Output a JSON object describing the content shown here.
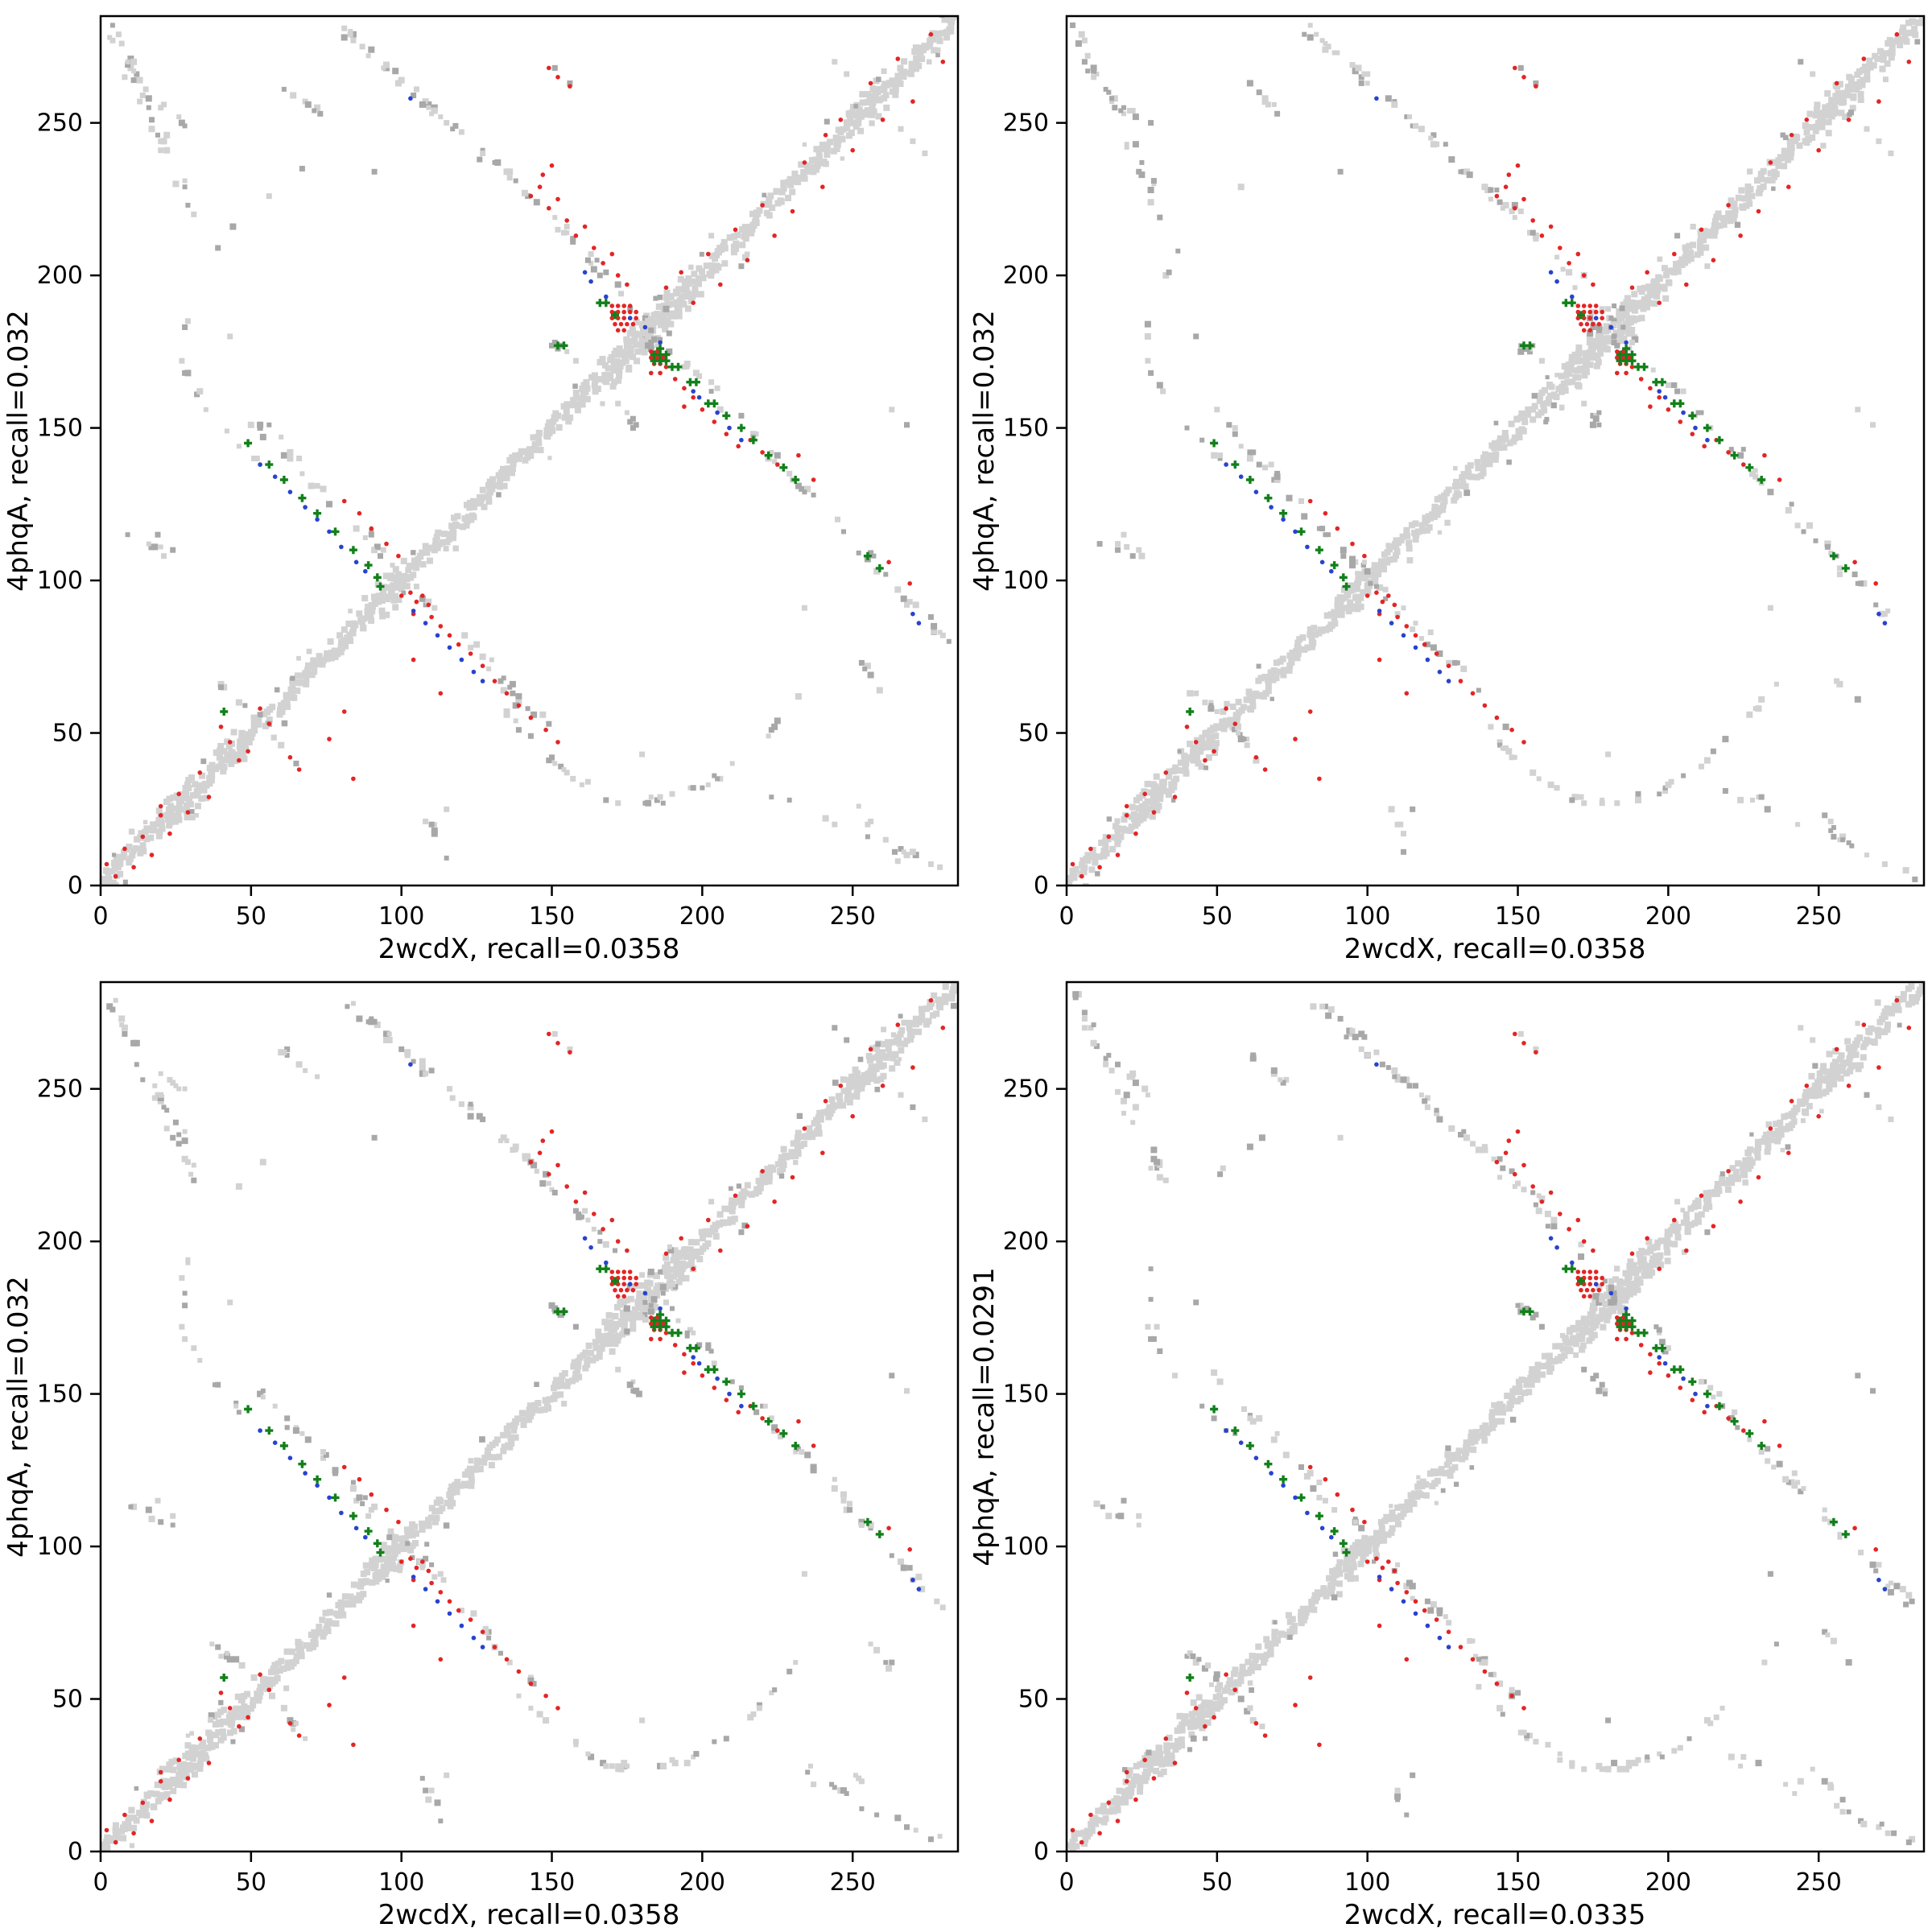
{
  "page": {
    "background": "#ffffff"
  },
  "chart_data": {
    "type": "scatter",
    "layout": {
      "rows": 2,
      "cols": 2,
      "panel_order": [
        "top-left",
        "top-right",
        "bottom-left",
        "bottom-right"
      ]
    },
    "axes": {
      "xlim": [
        0,
        285
      ],
      "ylim": [
        0,
        285
      ],
      "xticks": [
        0,
        50,
        100,
        150,
        200,
        250
      ],
      "yticks": [
        0,
        50,
        100,
        150,
        200,
        250
      ],
      "grid": false
    },
    "colors": {
      "gray_light": "#d2d2d2",
      "gray_dark": "#a8a8a8",
      "red": "#e32525",
      "blue": "#2743cf",
      "green": "#12801a",
      "axis": "#000000",
      "background": "#ffffff"
    },
    "panels": [
      {
        "id": "top-left",
        "xlabel": "2wcdX, recall=0.0358",
        "ylabel": "4phqA, recall=0.032",
        "seed": 101
      },
      {
        "id": "top-right",
        "xlabel": "2wcdX, recall=0.0358",
        "ylabel": "4phqA, recall=0.032",
        "seed": 202
      },
      {
        "id": "bottom-left",
        "xlabel": "2wcdX, recall=0.0358",
        "ylabel": "4phqA, recall=0.032",
        "seed": 303
      },
      {
        "id": "bottom-right",
        "xlabel": "2wcdX, recall=0.0335",
        "ylabel": "4phqA, recall=0.0291",
        "seed": 404
      }
    ],
    "pattern": {
      "band": {
        "step": 0.85,
        "halfwidth": 1.8,
        "size": 8
      },
      "band_bulges": [
        [
          22,
          33
        ],
        [
          41,
          49
        ],
        [
          91,
          101
        ],
        [
          167,
          197
        ],
        [
          250,
          263
        ]
      ],
      "bulge_halfwidth": 3.4,
      "fleck_count": 46,
      "segments": [
        [
          80,
          281,
          145,
          224,
          46,
          1.6,
          0,
          0
        ],
        [
          145,
          224,
          173,
          195,
          16,
          1.8,
          0,
          0
        ],
        [
          193,
          173,
          242,
          121,
          26,
          1.8,
          0,
          0
        ],
        [
          242,
          121,
          281,
          80,
          20,
          1.8,
          0,
          0
        ],
        [
          3,
          281,
          33,
          219,
          32,
          2.2,
          0.5,
          0
        ],
        [
          47,
          157,
          150,
          50,
          52,
          1.8,
          0,
          0
        ],
        [
          60,
          263,
          73,
          252,
          7,
          1.5,
          0.5,
          0
        ],
        [
          16,
          258,
          28,
          249,
          6,
          1.2,
          0.5,
          0
        ],
        [
          8,
          114,
          24,
          108,
          6,
          1.5,
          0.6,
          0
        ],
        [
          38,
          68,
          52,
          55,
          9,
          1.5,
          0.6,
          0
        ],
        [
          149,
          178,
          156,
          175,
          6,
          1.2,
          1,
          1
        ]
      ],
      "arcs": [
        [
          135,
          180,
          180,
          27.5,
          0.0148,
          16,
          0
        ],
        [
          180,
          237,
          180,
          27.5,
          0.0128,
          20,
          0
        ],
        [
          135,
          180,
          180,
          27.5,
          0.0148,
          8,
          1
        ],
        [
          180,
          237,
          180,
          27.5,
          0.0128,
          6,
          1
        ]
      ],
      "cluster": {
        "cx": 182,
        "cy": 182,
        "spread": 9,
        "n": 24
      },
      "stray_gray": [
        [
          19,
          115
        ],
        [
          24,
          110
        ],
        [
          110,
          20
        ],
        [
          115,
          25
        ],
        [
          151,
          268
        ],
        [
          156,
          263
        ],
        [
          263,
          156
        ],
        [
          268,
          151
        ],
        [
          91,
          234
        ],
        [
          234,
          91
        ],
        [
          203,
          213
        ],
        [
          213,
          203
        ],
        [
          172,
          158
        ],
        [
          158,
          172
        ],
        [
          43,
          180
        ],
        [
          180,
          43
        ],
        [
          266,
          248
        ],
        [
          270,
          244
        ],
        [
          274,
          240
        ],
        [
          248,
          266
        ],
        [
          244,
          270
        ],
        [
          168,
          28
        ],
        [
          172,
          27
        ],
        [
          190,
          30
        ],
        [
          28,
          168
        ],
        [
          27,
          172
        ]
      ],
      "red": [
        [
          2,
          7
        ],
        [
          5,
          3
        ],
        [
          8,
          12
        ],
        [
          11,
          6
        ],
        [
          14,
          16
        ],
        [
          17,
          10
        ],
        [
          20,
          23
        ],
        [
          23,
          17
        ],
        [
          20,
          26
        ],
        [
          26,
          30
        ],
        [
          29,
          24
        ],
        [
          33,
          37
        ],
        [
          36,
          29
        ],
        [
          40,
          52
        ],
        [
          43,
          47
        ],
        [
          46,
          41
        ],
        [
          49,
          44
        ],
        [
          53,
          58
        ],
        [
          56,
          53
        ],
        [
          63,
          42
        ],
        [
          66,
          38
        ],
        [
          76,
          48
        ],
        [
          81,
          57
        ],
        [
          84,
          35
        ],
        [
          81,
          126
        ],
        [
          86,
          122
        ],
        [
          90,
          117
        ],
        [
          95,
          112
        ],
        [
          99,
          108
        ],
        [
          100,
          95
        ],
        [
          103,
          96
        ],
        [
          105,
          93
        ],
        [
          107,
          95
        ],
        [
          109,
          92
        ],
        [
          104,
          89
        ],
        [
          110,
          88
        ],
        [
          113,
          85
        ],
        [
          116,
          82
        ],
        [
          119,
          79
        ],
        [
          104,
          74
        ],
        [
          113,
          63
        ],
        [
          123,
          76
        ],
        [
          127,
          72
        ],
        [
          131,
          67
        ],
        [
          135,
          63
        ],
        [
          139,
          59
        ],
        [
          143,
          55
        ],
        [
          148,
          51
        ],
        [
          152,
          47
        ],
        [
          143,
          226
        ],
        [
          146,
          229
        ],
        [
          149,
          222
        ],
        [
          152,
          225
        ],
        [
          155,
          218
        ],
        [
          147,
          233
        ],
        [
          150,
          236
        ],
        [
          158,
          213
        ],
        [
          161,
          216
        ],
        [
          164,
          209
        ],
        [
          167,
          204
        ],
        [
          170,
          207
        ],
        [
          172,
          200
        ],
        [
          175,
          197
        ],
        [
          149,
          268
        ],
        [
          152,
          265
        ],
        [
          156,
          262
        ],
        [
          170,
          190
        ],
        [
          172,
          190
        ],
        [
          174,
          190
        ],
        [
          176,
          190
        ],
        [
          170,
          188
        ],
        [
          172,
          188
        ],
        [
          174,
          188
        ],
        [
          176,
          188
        ],
        [
          178,
          188
        ],
        [
          170,
          186
        ],
        [
          172,
          186
        ],
        [
          174,
          186
        ],
        [
          176,
          186
        ],
        [
          178,
          186
        ],
        [
          171,
          184
        ],
        [
          173,
          184
        ],
        [
          175,
          184
        ],
        [
          177,
          184
        ],
        [
          172,
          182
        ],
        [
          174,
          182
        ],
        [
          183,
          175
        ],
        [
          185,
          175
        ],
        [
          183,
          173
        ],
        [
          185,
          173
        ],
        [
          187,
          173
        ],
        [
          184,
          171
        ],
        [
          186,
          171
        ],
        [
          188,
          170
        ],
        [
          183,
          168
        ],
        [
          186,
          168
        ],
        [
          191,
          166
        ],
        [
          194,
          163
        ],
        [
          197,
          160
        ],
        [
          194,
          157
        ],
        [
          200,
          156
        ],
        [
          204,
          152
        ],
        [
          208,
          148
        ],
        [
          212,
          144
        ],
        [
          216,
          146
        ],
        [
          220,
          142
        ],
        [
          225,
          138
        ],
        [
          232,
          141
        ],
        [
          237,
          133
        ],
        [
          262,
          106
        ],
        [
          269,
          99
        ],
        [
          188,
          196
        ],
        [
          193,
          201
        ],
        [
          197,
          191
        ],
        [
          202,
          207
        ],
        [
          206,
          197
        ],
        [
          211,
          215
        ],
        [
          215,
          205
        ],
        [
          220,
          223
        ],
        [
          224,
          213
        ],
        [
          230,
          221
        ],
        [
          234,
          237
        ],
        [
          240,
          229
        ],
        [
          241,
          246
        ],
        [
          246,
          251
        ],
        [
          250,
          241
        ],
        [
          256,
          263
        ],
        [
          260,
          251
        ],
        [
          265,
          271
        ],
        [
          270,
          257
        ],
        [
          276,
          279
        ],
        [
          280,
          270
        ]
      ],
      "blue": [
        [
          53,
          138
        ],
        [
          58,
          134
        ],
        [
          63,
          129
        ],
        [
          68,
          124
        ],
        [
          72,
          120
        ],
        [
          76,
          116
        ],
        [
          80,
          111
        ],
        [
          85,
          106
        ],
        [
          88,
          103
        ],
        [
          104,
          90
        ],
        [
          108,
          86
        ],
        [
          112,
          82
        ],
        [
          116,
          78
        ],
        [
          120,
          74
        ],
        [
          124,
          70
        ],
        [
          127,
          67
        ],
        [
          161,
          201
        ],
        [
          163,
          198
        ],
        [
          168,
          193
        ],
        [
          176,
          186
        ],
        [
          181,
          183
        ],
        [
          186,
          178
        ],
        [
          197,
          162
        ],
        [
          199,
          160
        ],
        [
          205,
          155
        ],
        [
          209,
          150
        ],
        [
          213,
          146
        ],
        [
          103,
          258
        ],
        [
          270,
          89
        ],
        [
          272,
          86
        ]
      ],
      "green": [
        [
          49,
          145
        ],
        [
          56,
          138
        ],
        [
          61,
          133
        ],
        [
          67,
          127
        ],
        [
          72,
          122
        ],
        [
          78,
          116
        ],
        [
          84,
          110
        ],
        [
          89,
          105
        ],
        [
          92,
          101
        ],
        [
          93,
          98
        ],
        [
          41,
          57
        ],
        [
          152,
          177
        ],
        [
          154,
          177
        ],
        [
          166,
          191
        ],
        [
          168,
          191
        ],
        [
          171,
          187
        ],
        [
          184,
          174
        ],
        [
          186,
          174
        ],
        [
          188,
          174
        ],
        [
          184,
          172
        ],
        [
          186,
          172
        ],
        [
          188,
          172
        ],
        [
          186,
          176
        ],
        [
          190,
          170
        ],
        [
          192,
          170
        ],
        [
          196,
          165
        ],
        [
          198,
          165
        ],
        [
          202,
          158
        ],
        [
          204,
          158
        ],
        [
          208,
          154
        ],
        [
          213,
          150
        ],
        [
          217,
          146
        ],
        [
          222,
          141
        ],
        [
          227,
          137
        ],
        [
          231,
          133
        ],
        [
          255,
          108
        ],
        [
          259,
          104
        ]
      ]
    }
  }
}
